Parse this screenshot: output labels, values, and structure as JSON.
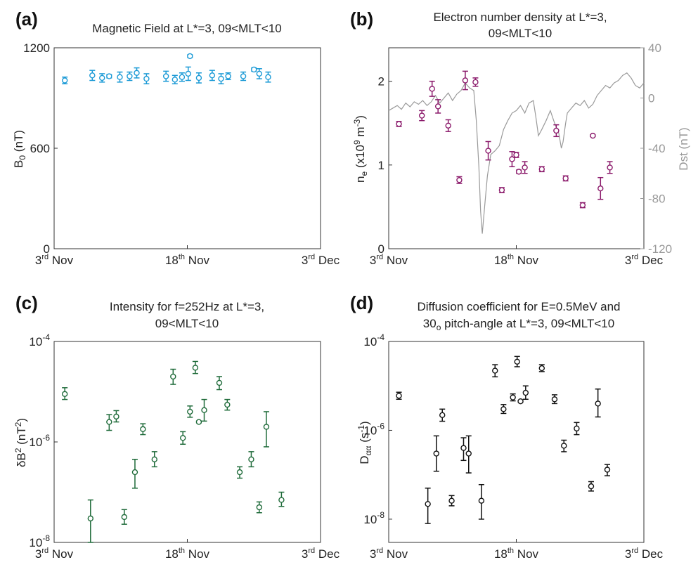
{
  "panels": {
    "a": {
      "letter": "(a)",
      "title": "Magnetic Field at L*=3, 09<MLT<10",
      "ylabel": "B",
      "ylabel_sub": "0",
      "ylabel_unit": " (nT)"
    },
    "b": {
      "letter": "(b)",
      "title_line1": "Electron number density at L*=3,",
      "title_line2": "09<MLT<10",
      "ylabel": "n",
      "ylabel_sub": "e",
      "ylabel_mid": " (x10",
      "ylabel_sup": "9",
      "ylabel_mid2": " m",
      "ylabel_sup2": "-3",
      "ylabel_end": ")",
      "ylabel_right": "Dst (nT)"
    },
    "c": {
      "letter": "(c)",
      "title_line1": "Intensity for f=252Hz at L*=3,",
      "title_line2": "09<MLT<10",
      "ylabel": "δB",
      "ylabel_sup": "2",
      "ylabel_unit": " (nT",
      "ylabel_sup2": "2",
      "ylabel_end": ")"
    },
    "d": {
      "letter": "(d)",
      "title_line1": "Diffusion coefficient for E=0.5MeV and",
      "title_line2a": "30",
      "title_line2_sub": "o",
      "title_line2b": " pitch-angle at L*=3, 09<MLT<10",
      "ylabel": "D",
      "ylabel_sub": "αα",
      "ylabel_unit": " (s",
      "ylabel_sup": "-1",
      "ylabel_end": ")"
    }
  },
  "x_ticks": [
    {
      "value": 3,
      "num": "3",
      "sup": "rd",
      "rest": " Nov"
    },
    {
      "value": 18,
      "num": "18",
      "sup": "th",
      "rest": " Nov"
    },
    {
      "value": 33,
      "num": "3",
      "sup": "rd",
      "rest": " Dec"
    }
  ],
  "chart_data": [
    {
      "id": "a",
      "type": "scatter",
      "title": "Magnetic Field at L*=3, 09<MLT<10",
      "xlabel": "",
      "ylabel": "B0 (nT)",
      "xlim": [
        3,
        33
      ],
      "ylim": [
        0,
        1200
      ],
      "yticks": [
        0,
        600,
        1200
      ],
      "color": "#1b9ad6",
      "points": [
        {
          "x": 4.2,
          "y": 1005,
          "lo": 985,
          "hi": 1025
        },
        {
          "x": 7.3,
          "y": 1035,
          "lo": 1005,
          "hi": 1065
        },
        {
          "x": 8.4,
          "y": 1020,
          "lo": 995,
          "hi": 1045
        },
        {
          "x": 9.2,
          "y": 1030,
          "lo": 1020,
          "hi": 1040
        },
        {
          "x": 10.4,
          "y": 1025,
          "lo": 995,
          "hi": 1055
        },
        {
          "x": 11.5,
          "y": 1030,
          "lo": 1005,
          "hi": 1055
        },
        {
          "x": 12.3,
          "y": 1050,
          "lo": 1020,
          "hi": 1080
        },
        {
          "x": 13.4,
          "y": 1015,
          "lo": 985,
          "hi": 1045
        },
        {
          "x": 15.6,
          "y": 1030,
          "lo": 1000,
          "hi": 1060
        },
        {
          "x": 16.6,
          "y": 1010,
          "lo": 985,
          "hi": 1035
        },
        {
          "x": 17.4,
          "y": 1025,
          "lo": 1000,
          "hi": 1050
        },
        {
          "x": 18.1,
          "y": 1045,
          "lo": 1005,
          "hi": 1085
        },
        {
          "x": 18.3,
          "y": 1150,
          "lo": 1142,
          "hi": 1158
        },
        {
          "x": 19.3,
          "y": 1020,
          "lo": 990,
          "hi": 1050
        },
        {
          "x": 20.8,
          "y": 1035,
          "lo": 1005,
          "hi": 1065
        },
        {
          "x": 21.8,
          "y": 1015,
          "lo": 985,
          "hi": 1045
        },
        {
          "x": 22.6,
          "y": 1030,
          "lo": 1010,
          "hi": 1050
        },
        {
          "x": 24.3,
          "y": 1030,
          "lo": 1005,
          "hi": 1055
        },
        {
          "x": 25.5,
          "y": 1070,
          "lo": 1060,
          "hi": 1080
        },
        {
          "x": 26.1,
          "y": 1045,
          "lo": 1015,
          "hi": 1075
        },
        {
          "x": 27.1,
          "y": 1025,
          "lo": 995,
          "hi": 1055
        }
      ]
    },
    {
      "id": "b",
      "type": "scatter",
      "title": "Electron number density at L*=3, 09<MLT<10",
      "xlabel": "",
      "ylabel": "ne (x10^9 m^-3)",
      "ylabel_right": "Dst (nT)",
      "xlim": [
        3,
        33
      ],
      "ylim": [
        0,
        2.4
      ],
      "yticks": [
        0,
        1,
        2
      ],
      "ylim_right": [
        -120,
        40
      ],
      "yticks_right": [
        -120,
        -80,
        -40,
        0,
        40
      ],
      "color": "#8b1a6b",
      "line_color": "#9a9a9a",
      "points": [
        {
          "x": 4.2,
          "y": 1.49,
          "lo": 1.46,
          "hi": 1.52
        },
        {
          "x": 6.9,
          "y": 1.59,
          "lo": 1.53,
          "hi": 1.65
        },
        {
          "x": 8.1,
          "y": 1.91,
          "lo": 1.82,
          "hi": 2.0
        },
        {
          "x": 8.8,
          "y": 1.7,
          "lo": 1.62,
          "hi": 1.78
        },
        {
          "x": 10.0,
          "y": 1.47,
          "lo": 1.4,
          "hi": 1.54
        },
        {
          "x": 11.3,
          "y": 0.82,
          "lo": 0.78,
          "hi": 0.86
        },
        {
          "x": 12.0,
          "y": 2.01,
          "lo": 1.9,
          "hi": 2.12
        },
        {
          "x": 13.2,
          "y": 1.99,
          "lo": 1.94,
          "hi": 2.04
        },
        {
          "x": 14.7,
          "y": 1.17,
          "lo": 1.06,
          "hi": 1.28
        },
        {
          "x": 16.3,
          "y": 0.7,
          "lo": 0.67,
          "hi": 0.73
        },
        {
          "x": 17.5,
          "y": 1.07,
          "lo": 0.98,
          "hi": 1.16
        },
        {
          "x": 18.0,
          "y": 1.12,
          "lo": 1.09,
          "hi": 1.15
        },
        {
          "x": 18.3,
          "y": 0.92,
          "lo": 0.9,
          "hi": 0.94
        },
        {
          "x": 19.0,
          "y": 0.97,
          "lo": 0.9,
          "hi": 1.04
        },
        {
          "x": 21.0,
          "y": 0.95,
          "lo": 0.92,
          "hi": 0.98
        },
        {
          "x": 22.7,
          "y": 1.41,
          "lo": 1.34,
          "hi": 1.48
        },
        {
          "x": 23.8,
          "y": 0.84,
          "lo": 0.81,
          "hi": 0.87
        },
        {
          "x": 25.8,
          "y": 0.52,
          "lo": 0.49,
          "hi": 0.55
        },
        {
          "x": 27.0,
          "y": 1.35,
          "lo": 1.34,
          "hi": 1.36
        },
        {
          "x": 27.9,
          "y": 0.72,
          "lo": 0.59,
          "hi": 0.85
        },
        {
          "x": 29.0,
          "y": 0.97,
          "lo": 0.9,
          "hi": 1.04
        }
      ],
      "line": {
        "x": [
          3.0,
          3.5,
          4.0,
          4.5,
          5.0,
          5.5,
          6.0,
          6.5,
          7.0,
          7.5,
          8.0,
          8.5,
          9.0,
          9.5,
          10.0,
          10.5,
          11.0,
          11.5,
          12.0,
          12.5,
          13.0,
          13.3,
          13.6,
          13.8,
          14.0,
          14.3,
          14.6,
          15.0,
          15.5,
          16.0,
          16.5,
          17.0,
          17.5,
          18.0,
          18.5,
          19.0,
          19.5,
          20.0,
          20.3,
          20.6,
          21.0,
          21.5,
          22.0,
          22.5,
          23.0,
          23.3,
          23.5,
          23.8,
          24.0,
          24.5,
          25.0,
          25.5,
          26.0,
          26.5,
          27.0,
          27.5,
          28.0,
          28.5,
          29.0,
          29.5,
          30.0,
          30.5,
          31.0,
          31.5,
          32.0,
          32.5,
          33.0
        ],
        "y": [
          -10,
          -8,
          -6,
          -9,
          -4,
          -7,
          -3,
          -5,
          -2,
          -6,
          -3,
          2,
          -4,
          0,
          4,
          -2,
          3,
          6,
          12,
          8,
          6,
          -18,
          -55,
          -90,
          -108,
          -85,
          -62,
          -45,
          -42,
          -38,
          -25,
          -18,
          -12,
          -10,
          -6,
          -12,
          -4,
          -2,
          -15,
          -30,
          -25,
          -18,
          -10,
          -20,
          -28,
          -40,
          -35,
          -20,
          -12,
          -8,
          -4,
          -6,
          -2,
          -8,
          -5,
          2,
          6,
          10,
          8,
          12,
          14,
          18,
          20,
          16,
          10,
          8,
          12
        ]
      }
    },
    {
      "id": "c",
      "type": "scatter",
      "title": "Intensity for f=252Hz at L*=3, 09<MLT<10",
      "xlabel": "",
      "ylabel": "δB² (nT²)",
      "yscale": "log",
      "xlim": [
        3,
        33
      ],
      "ylim": [
        1e-08,
        0.0001
      ],
      "yticks": [
        "10^-8",
        "10^-6",
        "10^-4"
      ],
      "color": "#1f6b3a",
      "points": [
        {
          "x": 4.2,
          "y": 9e-06,
          "lo": 7e-06,
          "hi": 1.2e-05
        },
        {
          "x": 7.1,
          "y": 3e-08,
          "lo": 1e-08,
          "hi": 7e-08
        },
        {
          "x": 9.2,
          "y": 2.5e-06,
          "lo": 1.7e-06,
          "hi": 3.5e-06
        },
        {
          "x": 10.0,
          "y": 3.2e-06,
          "lo": 2.5e-06,
          "hi": 4.2e-06
        },
        {
          "x": 10.9,
          "y": 3.2e-08,
          "lo": 2.3e-08,
          "hi": 4.5e-08
        },
        {
          "x": 12.1,
          "y": 2.5e-07,
          "lo": 1.2e-07,
          "hi": 4.5e-07
        },
        {
          "x": 13.0,
          "y": 1.8e-06,
          "lo": 1.4e-06,
          "hi": 2.3e-06
        },
        {
          "x": 14.3,
          "y": 4.5e-07,
          "lo": 3.2e-07,
          "hi": 6.4e-07
        },
        {
          "x": 16.4,
          "y": 2e-05,
          "lo": 1.4e-05,
          "hi": 2.8e-05
        },
        {
          "x": 17.5,
          "y": 1.2e-06,
          "lo": 9e-07,
          "hi": 1.6e-06
        },
        {
          "x": 18.3,
          "y": 4e-06,
          "lo": 3.1e-06,
          "hi": 5.2e-06
        },
        {
          "x": 18.9,
          "y": 3e-05,
          "lo": 2.3e-05,
          "hi": 4e-05
        },
        {
          "x": 19.3,
          "y": 2.5e-06,
          "lo": 2.4e-06,
          "hi": 2.6e-06
        },
        {
          "x": 19.9,
          "y": 4.3e-06,
          "lo": 2.6e-06,
          "hi": 7e-06
        },
        {
          "x": 21.6,
          "y": 1.5e-05,
          "lo": 1.1e-05,
          "hi": 2e-05
        },
        {
          "x": 22.5,
          "y": 5.5e-06,
          "lo": 4.3e-06,
          "hi": 7e-06
        },
        {
          "x": 23.9,
          "y": 2.5e-07,
          "lo": 1.9e-07,
          "hi": 3.2e-07
        },
        {
          "x": 25.2,
          "y": 4.5e-07,
          "lo": 3.2e-07,
          "hi": 6.4e-07
        },
        {
          "x": 26.1,
          "y": 5e-08,
          "lo": 3.9e-08,
          "hi": 6.4e-08
        },
        {
          "x": 26.9,
          "y": 2e-06,
          "lo": 8e-07,
          "hi": 4e-06
        },
        {
          "x": 28.6,
          "y": 7e-08,
          "lo": 5.2e-08,
          "hi": 1e-07
        }
      ]
    },
    {
      "id": "d",
      "type": "scatter",
      "title": "Diffusion coefficient for E=0.5MeV and 30o pitch-angle at L*=3, 09<MLT<10",
      "xlabel": "",
      "ylabel": "Dαα (s^-1)",
      "yscale": "log",
      "xlim": [
        3,
        33
      ],
      "ylim": [
        3e-09,
        0.0001
      ],
      "yticks": [
        "10^-8",
        "10^-6",
        "10^-4"
      ],
      "color": "#111111",
      "points": [
        {
          "x": 4.2,
          "y": 6e-06,
          "lo": 5e-06,
          "hi": 7.2e-06
        },
        {
          "x": 7.6,
          "y": 2.2e-08,
          "lo": 8e-09,
          "hi": 5e-08
        },
        {
          "x": 8.6,
          "y": 3e-07,
          "lo": 1.2e-07,
          "hi": 7.5e-07
        },
        {
          "x": 9.3,
          "y": 2.2e-06,
          "lo": 1.6e-06,
          "hi": 3e-06
        },
        {
          "x": 10.4,
          "y": 2.6e-08,
          "lo": 2e-08,
          "hi": 3.4e-08
        },
        {
          "x": 11.8,
          "y": 4e-07,
          "lo": 2.1e-07,
          "hi": 6.8e-07
        },
        {
          "x": 12.4,
          "y": 3e-07,
          "lo": 1.1e-07,
          "hi": 7.5e-07
        },
        {
          "x": 13.9,
          "y": 2.6e-08,
          "lo": 1e-08,
          "hi": 6e-08
        },
        {
          "x": 15.5,
          "y": 2.2e-05,
          "lo": 1.6e-05,
          "hi": 3e-05
        },
        {
          "x": 16.5,
          "y": 3e-06,
          "lo": 2.4e-06,
          "hi": 3.8e-06
        },
        {
          "x": 17.6,
          "y": 5.5e-06,
          "lo": 4.6e-06,
          "hi": 6.6e-06
        },
        {
          "x": 18.1,
          "y": 3.5e-05,
          "lo": 2.7e-05,
          "hi": 4.6e-05
        },
        {
          "x": 18.5,
          "y": 4.5e-06,
          "lo": 4.3e-06,
          "hi": 4.7e-06
        },
        {
          "x": 19.1,
          "y": 7e-06,
          "lo": 5e-06,
          "hi": 1e-05
        },
        {
          "x": 21.0,
          "y": 2.5e-05,
          "lo": 2.1e-05,
          "hi": 3e-05
        },
        {
          "x": 22.5,
          "y": 5e-06,
          "lo": 4e-06,
          "hi": 6.3e-06
        },
        {
          "x": 23.6,
          "y": 4.5e-07,
          "lo": 3.3e-07,
          "hi": 6e-07
        },
        {
          "x": 25.1,
          "y": 1.1e-06,
          "lo": 8e-07,
          "hi": 1.5e-06
        },
        {
          "x": 26.8,
          "y": 5.5e-08,
          "lo": 4.3e-08,
          "hi": 7e-08
        },
        {
          "x": 27.6,
          "y": 4e-06,
          "lo": 2e-06,
          "hi": 8.5e-06
        },
        {
          "x": 28.7,
          "y": 1.3e-07,
          "lo": 9.5e-08,
          "hi": 1.7e-07
        }
      ]
    }
  ]
}
